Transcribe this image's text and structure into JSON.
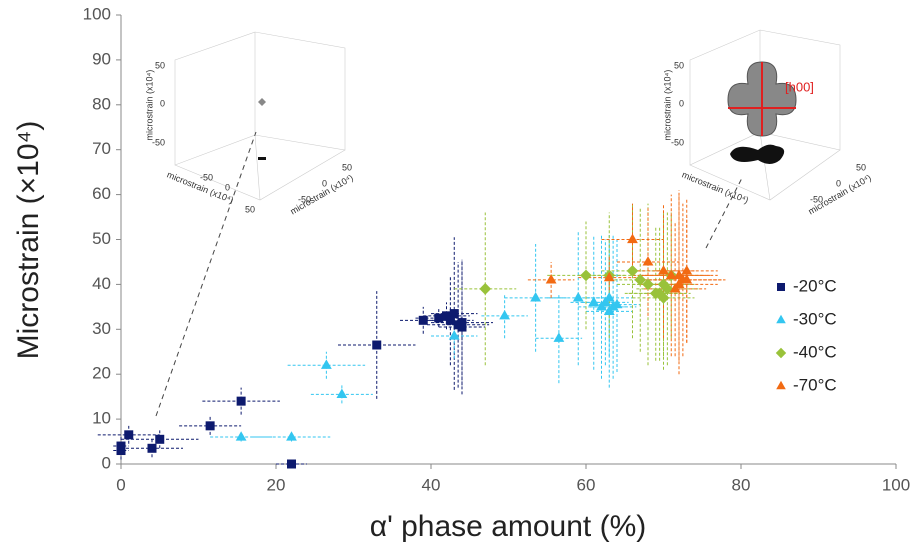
{
  "chart_data": {
    "type": "scatter",
    "x_label": "α' phase amount (%)",
    "y_label": "Microstrain (×10⁴)",
    "xlim": [
      0,
      100
    ],
    "xticks": [
      0,
      20,
      40,
      60,
      80,
      100
    ],
    "ylim": [
      0,
      100
    ],
    "yticks": [
      0,
      10,
      20,
      30,
      40,
      50,
      60,
      70,
      80,
      90,
      100
    ],
    "grid": false,
    "legend": "right",
    "series": [
      {
        "name": "-20°C",
        "color": "#0d1a6e",
        "marker": "square",
        "x": [
          0,
          0,
          1,
          4,
          5,
          11.5,
          15.5,
          22,
          33,
          39,
          41,
          42,
          43,
          43.5,
          44,
          42.5,
          44
        ],
        "values": [
          3,
          4,
          6.5,
          3.5,
          5.5,
          8.5,
          14,
          0,
          26.5,
          32,
          32.5,
          33,
          33.5,
          31,
          30.5,
          32,
          31.5
        ],
        "x_errors": [
          1,
          1,
          4,
          4,
          5,
          4,
          5,
          2,
          5,
          3,
          3,
          3,
          3,
          4,
          3,
          3,
          4
        ],
        "errors": [
          2,
          2,
          2,
          2,
          2,
          2,
          3,
          1,
          12,
          3,
          2,
          3,
          17,
          14,
          15,
          10,
          14
        ]
      },
      {
        "name": "-30°C",
        "color": "#33c6f0",
        "marker": "triangle",
        "x": [
          15.5,
          22,
          26.5,
          28.5,
          43,
          49.5,
          53.5,
          56.5,
          59,
          61,
          62,
          63,
          63.5,
          62.5,
          64,
          63
        ],
        "values": [
          6,
          6,
          22,
          15.5,
          28.5,
          33,
          37,
          28,
          37,
          36,
          35,
          34,
          35,
          36,
          35.5,
          37
        ],
        "x_errors": [
          4,
          5,
          5,
          4,
          3,
          3,
          4,
          3,
          4,
          3,
          3,
          3,
          3,
          3,
          3,
          3
        ],
        "errors": [
          1,
          1,
          3,
          2,
          5,
          5,
          12,
          10,
          15,
          15,
          16,
          17,
          16,
          14,
          15,
          13
        ]
      },
      {
        "name": "-40°C",
        "color": "#99c23a",
        "marker": "diamond",
        "x": [
          47,
          60,
          63,
          66,
          67,
          68,
          69,
          70,
          70.5,
          71,
          69.5,
          70
        ],
        "values": [
          39,
          42,
          42,
          43,
          41,
          40,
          38,
          37,
          39,
          42,
          38,
          40
        ],
        "x_errors": [
          4,
          5,
          4,
          4,
          4,
          4,
          4,
          4,
          4,
          4,
          4,
          4
        ],
        "errors": [
          17,
          12,
          14,
          15,
          16,
          18,
          15,
          16,
          17,
          14,
          15,
          16
        ]
      },
      {
        "name": "-70°C",
        "color": "#f26a12",
        "marker": "triangle",
        "x": [
          55.5,
          63,
          66,
          68,
          70,
          71,
          72,
          72.5,
          73,
          72,
          71.5,
          73
        ],
        "values": [
          41,
          41.5,
          50,
          45,
          43,
          42,
          40,
          41,
          43,
          42,
          39,
          41
        ],
        "x_errors": [
          3,
          4,
          4,
          4,
          4,
          5,
          5,
          5,
          4,
          5,
          4,
          5
        ],
        "errors": [
          4,
          5,
          8,
          12,
          15,
          18,
          20,
          17,
          16,
          19,
          15,
          14
        ]
      }
    ]
  },
  "insets": [
    {
      "axis_label": "microstrain (x10⁴)",
      "ticks": [
        -50,
        0,
        50
      ]
    },
    {
      "axis_label": "microstrain (x10⁴)",
      "ticks": [
        -50,
        0,
        50
      ],
      "annotation": "[h00]"
    }
  ]
}
